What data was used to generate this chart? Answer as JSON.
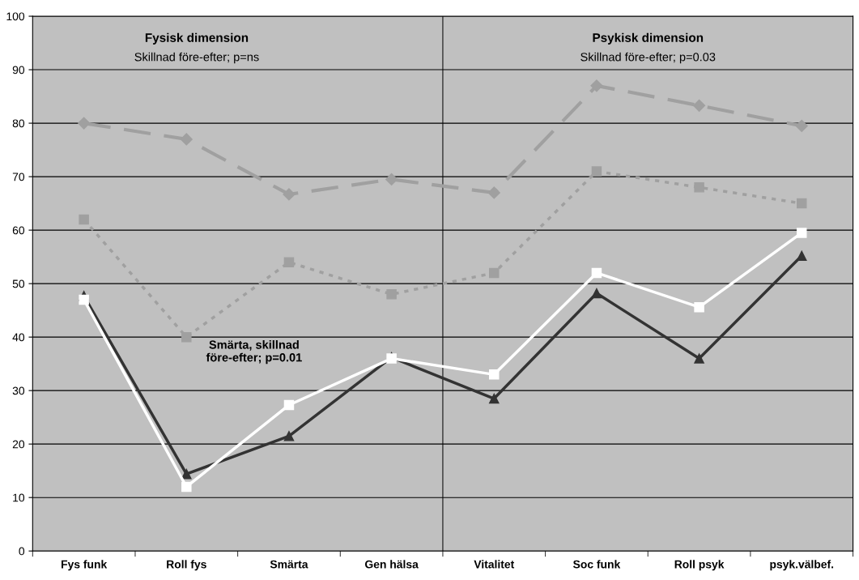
{
  "chart_data": {
    "type": "line",
    "categories": [
      "Fys funk",
      "Roll fys",
      "Smärta",
      "Gen hälsa",
      "Vitalitet",
      "Soc funk",
      "Roll psyk",
      "psyk.välbef."
    ],
    "series": [
      {
        "color": "#a0a0a0",
        "marker": "diamond",
        "line_style": "dashed",
        "values": [
          80,
          77,
          66.7,
          69.5,
          67,
          87,
          83.3,
          79.5
        ]
      },
      {
        "color": "#a0a0a0",
        "marker": "square",
        "line_style": "dotted",
        "values": [
          62,
          40,
          54,
          48,
          52,
          71,
          68,
          65
        ]
      },
      {
        "color": "#ffffff",
        "marker": "square",
        "line_style": "solid",
        "values": [
          47,
          12,
          27.3,
          36,
          33,
          52,
          45.6,
          59.5
        ]
      },
      {
        "color": "#333333",
        "marker": "triangle",
        "line_style": "solid",
        "values": [
          47.7,
          14.4,
          21.5,
          36.2,
          28.5,
          48.2,
          36,
          55.2
        ]
      }
    ],
    "ylim": [
      0,
      100
    ],
    "yticks": [
      0,
      10,
      20,
      30,
      40,
      50,
      60,
      70,
      80,
      90,
      100
    ],
    "grid": "y",
    "legend": false,
    "annotations": [
      "Fysisk dimension",
      "Skillnad före-efter; p=ns",
      "Psykisk dimension",
      "Skillnad före-efter; p=0.03",
      "Smärta, skillnad\nföre-efter; p=0.01"
    ]
  }
}
